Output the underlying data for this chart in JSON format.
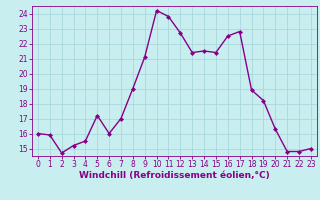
{
  "x": [
    0,
    1,
    2,
    3,
    4,
    5,
    6,
    7,
    8,
    9,
    10,
    11,
    12,
    13,
    14,
    15,
    16,
    17,
    18,
    19,
    20,
    21,
    22,
    23
  ],
  "y": [
    16.0,
    15.9,
    14.7,
    15.2,
    15.5,
    17.2,
    16.0,
    17.0,
    19.0,
    21.1,
    24.2,
    23.8,
    22.7,
    21.4,
    21.5,
    21.4,
    22.5,
    22.8,
    18.9,
    18.2,
    16.3,
    14.8,
    14.8,
    15.0
  ],
  "line_color": "#880088",
  "marker": "D",
  "marker_size": 2.0,
  "line_width": 1.0,
  "background_color": "#c8eef0",
  "grid_color": "#a8d8dc",
  "xlabel": "Windchill (Refroidissement éolien,°C)",
  "xlabel_fontsize": 6.5,
  "ylim": [
    14.5,
    24.5
  ],
  "yticks": [
    15,
    16,
    17,
    18,
    19,
    20,
    21,
    22,
    23,
    24
  ],
  "xticks": [
    0,
    1,
    2,
    3,
    4,
    5,
    6,
    7,
    8,
    9,
    10,
    11,
    12,
    13,
    14,
    15,
    16,
    17,
    18,
    19,
    20,
    21,
    22,
    23
  ],
  "tick_fontsize": 5.5,
  "spine_color": "#880088",
  "xlabel_fontweight": "bold"
}
